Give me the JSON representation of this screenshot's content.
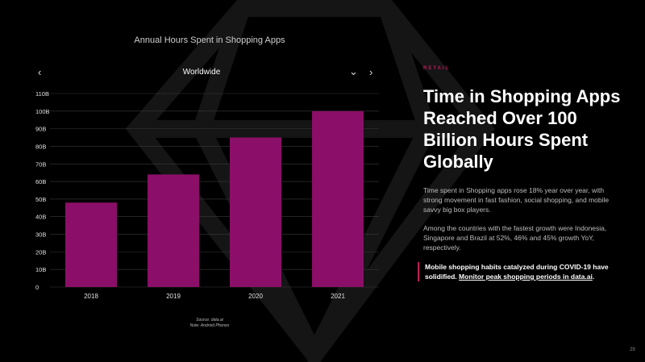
{
  "chart_data": {
    "type": "bar",
    "title": "Annual Hours Spent in Shopping Apps",
    "categories": [
      "2018",
      "2019",
      "2020",
      "2021"
    ],
    "values": [
      48,
      64,
      85,
      100
    ],
    "unit": "B",
    "yticks": [
      "0",
      "10B",
      "20B",
      "30B",
      "40B",
      "50B",
      "60B",
      "70B",
      "80B",
      "90B",
      "100B",
      "110B"
    ],
    "ylim": [
      0,
      110
    ],
    "grid": true,
    "bar_color": "#8b0f68"
  },
  "chart_nav": {
    "region": "Worldwide",
    "prev_icon": "chevron-left-icon",
    "next_icon": "chevron-right-icon",
    "dropdown_icon": "chevron-down-icon"
  },
  "source": {
    "line1": "Source: data.ai",
    "line2": "Note: Android Phones"
  },
  "article": {
    "eyebrow": "RETAIL",
    "headline": "Time in Shopping Apps Reached Over 100 Billion Hours Spent Globally",
    "para1": "Time spent in Shopping apps rose 18% year over year, with strong movement in fast fashion, social shopping, and mobile savvy big box players.",
    "para2": "Among the countries with the fastest growth were Indonesia, Singapore and Brazil at 52%, 46% and 45% growth YoY, respectively.",
    "callout_text": "Mobile shopping habits catalyzed during COVID-19 have solidified.",
    "callout_link": "Monitor peak shopping periods in data.ai",
    "callout_end": ".",
    "accent_color": "#c2185b"
  },
  "page_number": "29"
}
